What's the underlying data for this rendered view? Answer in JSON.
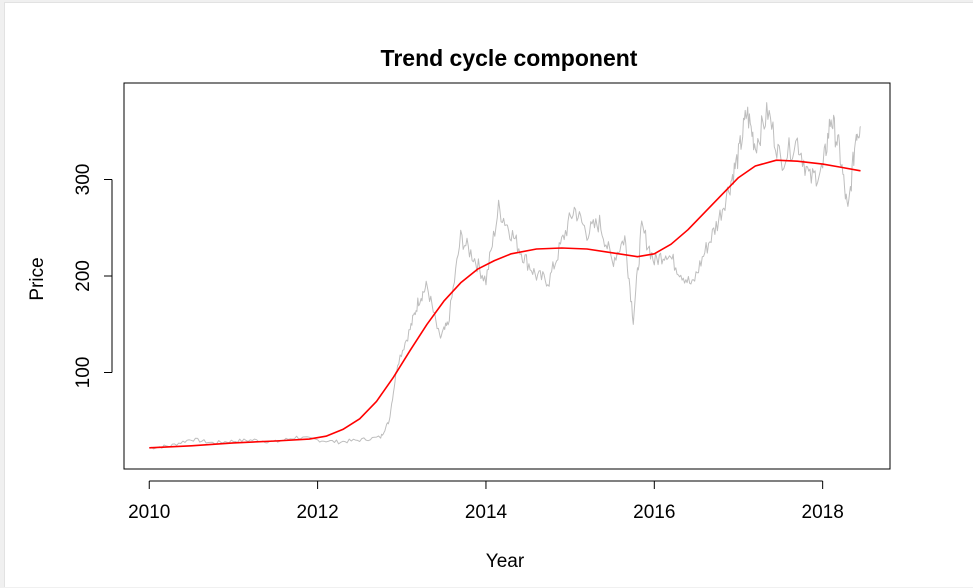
{
  "chart_data": {
    "type": "line",
    "title": "Trend cycle component",
    "xlabel": "Year",
    "ylabel": "Price",
    "xlim": [
      2009.7,
      2018.8
    ],
    "ylim": [
      0,
      400
    ],
    "x_ticks": [
      "2010",
      "2012",
      "2014",
      "2016",
      "2018"
    ],
    "y_ticks": [
      "100",
      "200",
      "300"
    ],
    "grid": false,
    "colors": {
      "raw": "#bebebe",
      "trend": "#ff0000"
    },
    "series": [
      {
        "values": [
          [
            2010.0,
            22
          ],
          [
            2010.25,
            24
          ],
          [
            2010.5,
            31
          ],
          [
            2010.75,
            27
          ],
          [
            2011.0,
            29
          ],
          [
            2011.25,
            30
          ],
          [
            2011.5,
            28
          ],
          [
            2011.75,
            33
          ],
          [
            2012.0,
            30
          ],
          [
            2012.25,
            28
          ],
          [
            2012.5,
            30
          ],
          [
            2012.75,
            33
          ],
          [
            2012.85,
            50
          ],
          [
            2012.95,
            110
          ],
          [
            2013.1,
            145
          ],
          [
            2013.2,
            175
          ],
          [
            2013.3,
            190
          ],
          [
            2013.45,
            135
          ],
          [
            2013.55,
            150
          ],
          [
            2013.7,
            240
          ],
          [
            2013.85,
            220
          ],
          [
            2014.0,
            195
          ],
          [
            2014.15,
            270
          ],
          [
            2014.3,
            245
          ],
          [
            2014.45,
            220
          ],
          [
            2014.6,
            200
          ],
          [
            2014.75,
            195
          ],
          [
            2014.9,
            235
          ],
          [
            2015.05,
            270
          ],
          [
            2015.2,
            245
          ],
          [
            2015.35,
            255
          ],
          [
            2015.5,
            215
          ],
          [
            2015.65,
            240
          ],
          [
            2015.75,
            155
          ],
          [
            2015.85,
            250
          ],
          [
            2016.0,
            215
          ],
          [
            2016.15,
            225
          ],
          [
            2016.3,
            205
          ],
          [
            2016.45,
            190
          ],
          [
            2016.6,
            225
          ],
          [
            2016.75,
            255
          ],
          [
            2016.9,
            295
          ],
          [
            2017.0,
            325
          ],
          [
            2017.1,
            370
          ],
          [
            2017.2,
            335
          ],
          [
            2017.35,
            370
          ],
          [
            2017.5,
            320
          ],
          [
            2017.7,
            340
          ],
          [
            2017.85,
            300
          ],
          [
            2018.0,
            310
          ],
          [
            2018.1,
            365
          ],
          [
            2018.2,
            330
          ],
          [
            2018.3,
            265
          ],
          [
            2018.4,
            350
          ],
          [
            2018.45,
            355
          ]
        ]
      },
      {
        "values": [
          [
            2010.0,
            22
          ],
          [
            2010.5,
            24
          ],
          [
            2011.0,
            27
          ],
          [
            2011.5,
            29
          ],
          [
            2011.9,
            31
          ],
          [
            2012.1,
            34
          ],
          [
            2012.3,
            41
          ],
          [
            2012.5,
            52
          ],
          [
            2012.7,
            70
          ],
          [
            2012.9,
            95
          ],
          [
            2013.1,
            123
          ],
          [
            2013.3,
            150
          ],
          [
            2013.5,
            174
          ],
          [
            2013.7,
            193
          ],
          [
            2013.9,
            207
          ],
          [
            2014.1,
            216
          ],
          [
            2014.3,
            223
          ],
          [
            2014.6,
            228
          ],
          [
            2014.9,
            229
          ],
          [
            2015.2,
            228
          ],
          [
            2015.5,
            224
          ],
          [
            2015.8,
            220
          ],
          [
            2016.0,
            223
          ],
          [
            2016.2,
            233
          ],
          [
            2016.4,
            248
          ],
          [
            2016.6,
            266
          ],
          [
            2016.8,
            284
          ],
          [
            2017.0,
            302
          ],
          [
            2017.2,
            314
          ],
          [
            2017.45,
            320
          ],
          [
            2017.7,
            319
          ],
          [
            2018.0,
            316
          ],
          [
            2018.2,
            313
          ],
          [
            2018.45,
            309
          ]
        ]
      }
    ]
  }
}
